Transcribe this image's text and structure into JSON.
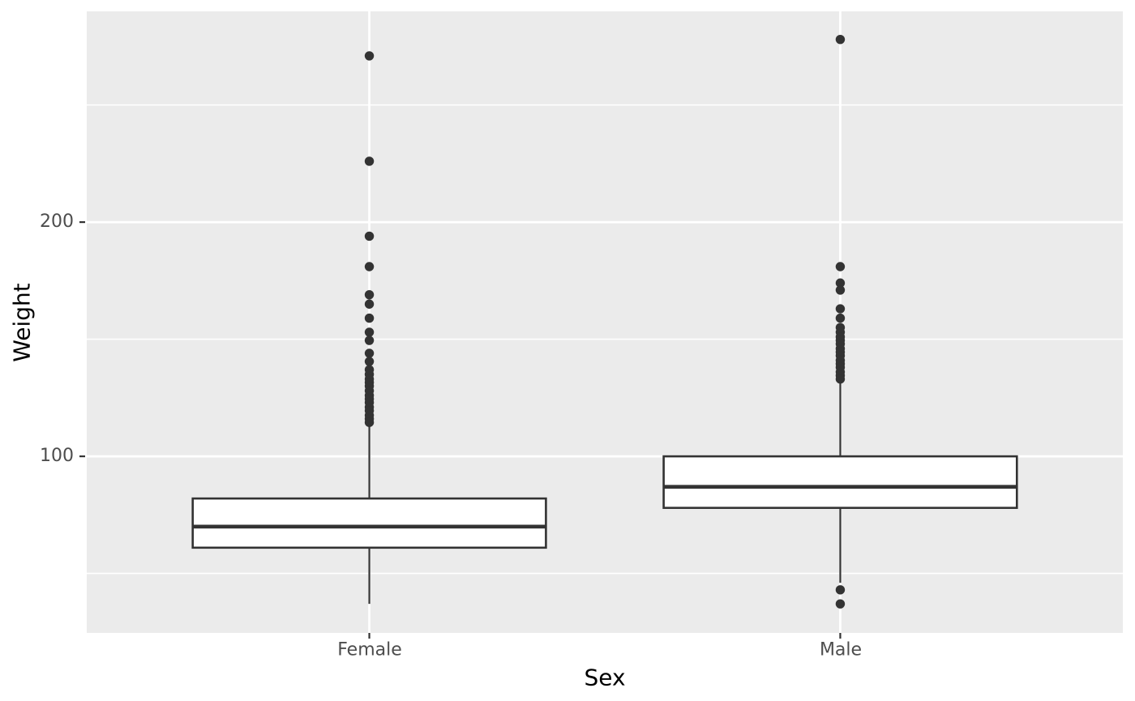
{
  "chart_data": {
    "type": "boxplot",
    "title": "",
    "xlabel": "Sex",
    "ylabel": "Weight",
    "categories": [
      "Female",
      "Male"
    ],
    "y_axis": {
      "ticks": [
        100,
        200
      ],
      "minor_gridlines": [
        50,
        150,
        250
      ],
      "lim": [
        24.6,
        290
      ]
    },
    "legend_position": "none",
    "grid": "major-and-minor",
    "series": [
      {
        "category": "Female",
        "q1": 61,
        "median": 70,
        "q3": 82,
        "whisker_low": 37,
        "whisker_high": 114,
        "outliers": [
          271,
          226,
          194,
          181,
          169,
          165,
          159,
          153,
          149.5,
          144,
          140.5,
          137,
          135,
          133,
          131.5,
          130,
          128,
          126,
          124.5,
          123,
          121,
          119.5,
          117.5,
          116,
          114.5
        ]
      },
      {
        "category": "Male",
        "q1": 78,
        "median": 87,
        "q3": 100,
        "whisker_low": 46,
        "whisker_high": 132,
        "outliers": [
          278,
          181,
          174,
          171,
          163,
          159,
          155,
          153,
          151,
          149.5,
          148,
          146,
          144.5,
          143,
          141,
          139.5,
          138,
          136,
          134.5,
          133,
          43,
          37
        ]
      }
    ],
    "style": {
      "panel_bg": "#EBEBEB",
      "grid_color": "#FFFFFF",
      "box_fill": "#FFFFFF",
      "stroke_color": "#333333",
      "tick_label_color": "#4D4D4D",
      "axis_title_color": "#000000",
      "outer_bg": "#FFFFFF"
    }
  }
}
